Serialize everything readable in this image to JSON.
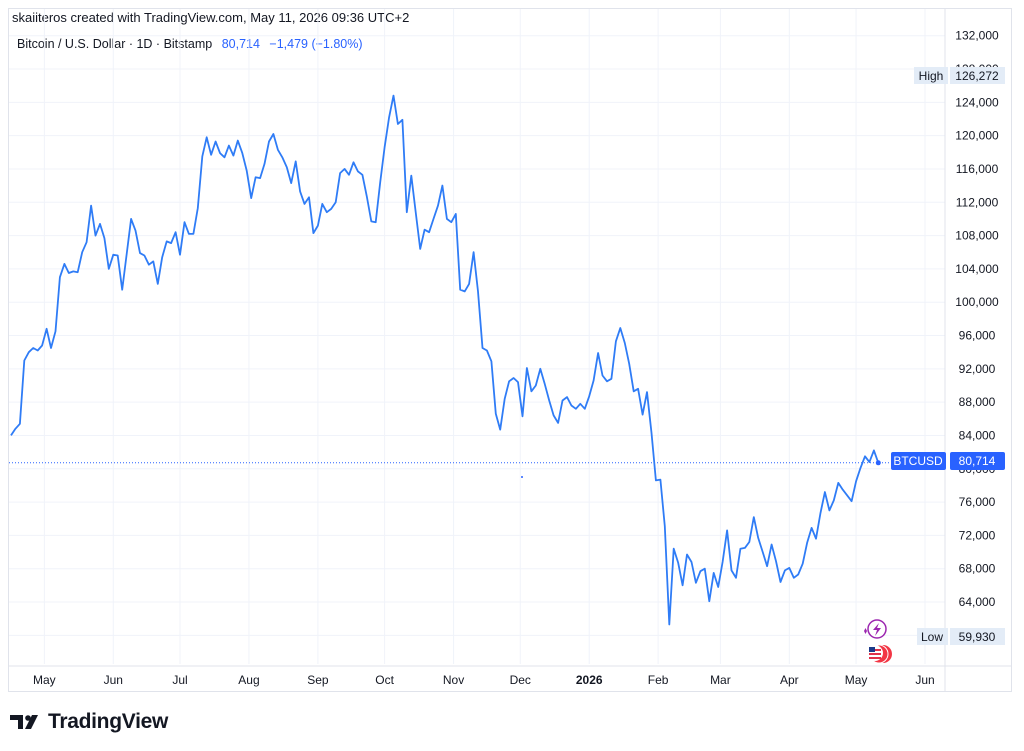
{
  "header": {
    "attribution": "skaiiteros created with TradingView.com, May 11, 2026 09:36 UTC+2",
    "symbol_title": "Bitcoin / U.S. Dollar · 1D · Bitstamp",
    "last_value": "80,714",
    "change": "−1,479 (−1.80%)"
  },
  "price_scale": {
    "high_label": "High",
    "high_value": "126,272",
    "low_label": "Low",
    "low_value": "59,930",
    "current_symbol": "BTCUSD",
    "current_value": "80,714"
  },
  "logo": {
    "text": "TradingView",
    "icon": "tradingview-logo-icon"
  },
  "event_icons": [
    "lightning-event-icon",
    "us-flag-event-icon"
  ],
  "colors": {
    "series": "#2f7cf6",
    "badge": "#2962ff",
    "grid": "#f0f3fa",
    "hl_bg": "#e3ecf7"
  },
  "chart_data": {
    "type": "line",
    "title": "Bitcoin / U.S. Dollar · 1D · Bitstamp",
    "xlabel": "",
    "ylabel": "",
    "ylim": [
      56000,
      132000
    ],
    "y_ticks": [
      "132,000",
      "128,000",
      "124,000",
      "120,000",
      "116,000",
      "112,000",
      "108,000",
      "104,000",
      "100,000",
      "96,000",
      "92,000",
      "88,000",
      "84,000",
      "80,000",
      "76,000",
      "72,000",
      "68,000",
      "64,000",
      "60,000"
    ],
    "x_ticks": [
      {
        "label": "May",
        "date": "2025-05-01"
      },
      {
        "label": "Jun",
        "date": "2025-06-01"
      },
      {
        "label": "Jul",
        "date": "2025-07-01"
      },
      {
        "label": "Aug",
        "date": "2025-08-01"
      },
      {
        "label": "Sep",
        "date": "2025-09-01"
      },
      {
        "label": "Oct",
        "date": "2025-10-01"
      },
      {
        "label": "Nov",
        "date": "2025-11-01"
      },
      {
        "label": "Dec",
        "date": "2025-12-01"
      },
      {
        "label": "2026",
        "date": "2026-01-01",
        "bold": true
      },
      {
        "label": "Feb",
        "date": "2026-02-01"
      },
      {
        "label": "Mar",
        "date": "2026-03-01"
      },
      {
        "label": "Apr",
        "date": "2026-04-01"
      },
      {
        "label": "May",
        "date": "2026-05-01"
      },
      {
        "label": "Jun",
        "date": "2026-06-01"
      }
    ],
    "grid": true,
    "last_value": 80714,
    "series": [
      {
        "points": [
          [
            "2025-04-16",
            84000
          ],
          [
            "2025-04-18",
            84800
          ],
          [
            "2025-04-20",
            85400
          ],
          [
            "2025-04-22",
            93000
          ],
          [
            "2025-04-24",
            94000
          ],
          [
            "2025-04-26",
            94500
          ],
          [
            "2025-04-28",
            94200
          ],
          [
            "2025-04-30",
            94800
          ],
          [
            "2025-05-02",
            96800
          ],
          [
            "2025-05-04",
            94500
          ],
          [
            "2025-05-06",
            96500
          ],
          [
            "2025-05-08",
            103000
          ],
          [
            "2025-05-10",
            104600
          ],
          [
            "2025-05-12",
            103500
          ],
          [
            "2025-05-14",
            103700
          ],
          [
            "2025-05-16",
            103600
          ],
          [
            "2025-05-18",
            106000
          ],
          [
            "2025-05-20",
            107200
          ],
          [
            "2025-05-22",
            111600
          ],
          [
            "2025-05-24",
            108000
          ],
          [
            "2025-05-26",
            109400
          ],
          [
            "2025-05-28",
            107700
          ],
          [
            "2025-05-30",
            104000
          ],
          [
            "2025-06-01",
            105700
          ],
          [
            "2025-06-03",
            105600
          ],
          [
            "2025-06-05",
            101500
          ],
          [
            "2025-06-07",
            105700
          ],
          [
            "2025-06-09",
            110000
          ],
          [
            "2025-06-11",
            108600
          ],
          [
            "2025-06-13",
            105900
          ],
          [
            "2025-06-15",
            105600
          ],
          [
            "2025-06-17",
            104500
          ],
          [
            "2025-06-19",
            104900
          ],
          [
            "2025-06-21",
            102200
          ],
          [
            "2025-06-23",
            105400
          ],
          [
            "2025-06-25",
            107300
          ],
          [
            "2025-06-27",
            107100
          ],
          [
            "2025-06-29",
            108400
          ],
          [
            "2025-07-01",
            105700
          ],
          [
            "2025-07-03",
            109600
          ],
          [
            "2025-07-05",
            108200
          ],
          [
            "2025-07-07",
            108200
          ],
          [
            "2025-07-09",
            111300
          ],
          [
            "2025-07-11",
            117500
          ],
          [
            "2025-07-13",
            119800
          ],
          [
            "2025-07-15",
            117700
          ],
          [
            "2025-07-17",
            119300
          ],
          [
            "2025-07-19",
            117900
          ],
          [
            "2025-07-21",
            117400
          ],
          [
            "2025-07-23",
            118800
          ],
          [
            "2025-07-25",
            117600
          ],
          [
            "2025-07-27",
            119400
          ],
          [
            "2025-07-29",
            117900
          ],
          [
            "2025-07-31",
            115800
          ],
          [
            "2025-08-02",
            112500
          ],
          [
            "2025-08-04",
            115000
          ],
          [
            "2025-08-06",
            114900
          ],
          [
            "2025-08-08",
            116600
          ],
          [
            "2025-08-10",
            119300
          ],
          [
            "2025-08-12",
            120200
          ],
          [
            "2025-08-14",
            118300
          ],
          [
            "2025-08-16",
            117400
          ],
          [
            "2025-08-18",
            116200
          ],
          [
            "2025-08-20",
            114300
          ],
          [
            "2025-08-22",
            116900
          ],
          [
            "2025-08-24",
            113300
          ],
          [
            "2025-08-26",
            111800
          ],
          [
            "2025-08-28",
            112600
          ],
          [
            "2025-08-30",
            108300
          ],
          [
            "2025-09-01",
            109200
          ],
          [
            "2025-09-03",
            111800
          ],
          [
            "2025-09-05",
            110800
          ],
          [
            "2025-09-07",
            111200
          ],
          [
            "2025-09-09",
            112000
          ],
          [
            "2025-09-11",
            115500
          ],
          [
            "2025-09-13",
            116000
          ],
          [
            "2025-09-15",
            115300
          ],
          [
            "2025-09-17",
            116800
          ],
          [
            "2025-09-19",
            115700
          ],
          [
            "2025-09-21",
            115300
          ],
          [
            "2025-09-23",
            112700
          ],
          [
            "2025-09-25",
            109700
          ],
          [
            "2025-09-27",
            109600
          ],
          [
            "2025-09-29",
            114400
          ],
          [
            "2025-10-01",
            118600
          ],
          [
            "2025-10-03",
            122200
          ],
          [
            "2025-10-05",
            124800
          ],
          [
            "2025-10-07",
            121400
          ],
          [
            "2025-10-09",
            121900
          ],
          [
            "2025-10-11",
            110800
          ],
          [
            "2025-10-13",
            115200
          ],
          [
            "2025-10-15",
            110800
          ],
          [
            "2025-10-17",
            106400
          ],
          [
            "2025-10-19",
            108700
          ],
          [
            "2025-10-21",
            108400
          ],
          [
            "2025-10-23",
            110000
          ],
          [
            "2025-10-25",
            111600
          ],
          [
            "2025-10-27",
            114000
          ],
          [
            "2025-10-29",
            110000
          ],
          [
            "2025-10-31",
            109600
          ],
          [
            "2025-11-02",
            110600
          ],
          [
            "2025-11-04",
            101500
          ],
          [
            "2025-11-06",
            101300
          ],
          [
            "2025-11-08",
            102200
          ],
          [
            "2025-11-10",
            106000
          ],
          [
            "2025-11-12",
            101300
          ],
          [
            "2025-11-14",
            94500
          ],
          [
            "2025-11-16",
            94200
          ],
          [
            "2025-11-18",
            92900
          ],
          [
            "2025-11-20",
            86600
          ],
          [
            "2025-11-22",
            84700
          ],
          [
            "2025-11-24",
            88400
          ],
          [
            "2025-11-26",
            90500
          ],
          [
            "2025-11-28",
            90900
          ],
          [
            "2025-11-30",
            90400
          ],
          [
            "2025-12-02",
            86300
          ],
          [
            "2025-12-04",
            92100
          ],
          [
            "2025-12-06",
            89300
          ],
          [
            "2025-12-08",
            90000
          ],
          [
            "2025-12-10",
            92000
          ],
          [
            "2025-12-12",
            90200
          ],
          [
            "2025-12-14",
            88200
          ],
          [
            "2025-12-16",
            86400
          ],
          [
            "2025-12-18",
            85500
          ],
          [
            "2025-12-20",
            88200
          ],
          [
            "2025-12-22",
            88600
          ],
          [
            "2025-12-24",
            87600
          ],
          [
            "2025-12-26",
            87200
          ],
          [
            "2025-12-28",
            87800
          ],
          [
            "2025-12-30",
            87200
          ],
          [
            "2026-01-01",
            88700
          ],
          [
            "2026-01-03",
            90600
          ],
          [
            "2026-01-05",
            93900
          ],
          [
            "2026-01-07",
            91200
          ],
          [
            "2026-01-09",
            90500
          ],
          [
            "2026-01-11",
            90800
          ],
          [
            "2026-01-13",
            95300
          ],
          [
            "2026-01-15",
            96900
          ],
          [
            "2026-01-17",
            95100
          ],
          [
            "2026-01-19",
            92600
          ],
          [
            "2026-01-21",
            89300
          ],
          [
            "2026-01-23",
            89600
          ],
          [
            "2026-01-25",
            86500
          ],
          [
            "2026-01-27",
            89200
          ],
          [
            "2026-01-29",
            84300
          ],
          [
            "2026-01-31",
            78600
          ],
          [
            "2026-02-02",
            78700
          ],
          [
            "2026-02-04",
            73100
          ],
          [
            "2026-02-06",
            61300
          ],
          [
            "2026-02-08",
            70400
          ],
          [
            "2026-02-10",
            68700
          ],
          [
            "2026-02-12",
            66000
          ],
          [
            "2026-02-14",
            69700
          ],
          [
            "2026-02-16",
            68800
          ],
          [
            "2026-02-18",
            66300
          ],
          [
            "2026-02-20",
            67700
          ],
          [
            "2026-02-22",
            68000
          ],
          [
            "2026-02-24",
            64100
          ],
          [
            "2026-02-26",
            67500
          ],
          [
            "2026-02-28",
            65800
          ],
          [
            "2026-03-02",
            68800
          ],
          [
            "2026-03-04",
            72600
          ],
          [
            "2026-03-06",
            67800
          ],
          [
            "2026-03-08",
            66900
          ],
          [
            "2026-03-10",
            70400
          ],
          [
            "2026-03-12",
            70500
          ],
          [
            "2026-03-14",
            71200
          ],
          [
            "2026-03-16",
            74200
          ],
          [
            "2026-03-18",
            71700
          ],
          [
            "2026-03-20",
            70000
          ],
          [
            "2026-03-22",
            68300
          ],
          [
            "2026-03-24",
            70900
          ],
          [
            "2026-03-26",
            68900
          ],
          [
            "2026-03-28",
            66400
          ],
          [
            "2026-03-30",
            67800
          ],
          [
            "2026-04-01",
            68100
          ],
          [
            "2026-04-03",
            66900
          ],
          [
            "2026-04-05",
            67300
          ],
          [
            "2026-04-07",
            68600
          ],
          [
            "2026-04-09",
            71100
          ],
          [
            "2026-04-11",
            72900
          ],
          [
            "2026-04-13",
            71600
          ],
          [
            "2026-04-15",
            74700
          ],
          [
            "2026-04-17",
            77200
          ],
          [
            "2026-04-19",
            75000
          ],
          [
            "2026-04-21",
            76200
          ],
          [
            "2026-04-23",
            78300
          ],
          [
            "2026-04-25",
            77500
          ],
          [
            "2026-04-27",
            76800
          ],
          [
            "2026-04-29",
            76100
          ],
          [
            "2026-05-01",
            78500
          ],
          [
            "2026-05-03",
            80100
          ],
          [
            "2026-05-05",
            81500
          ],
          [
            "2026-05-07",
            80800
          ],
          [
            "2026-05-09",
            82200
          ],
          [
            "2026-05-11",
            80714
          ]
        ]
      }
    ]
  }
}
